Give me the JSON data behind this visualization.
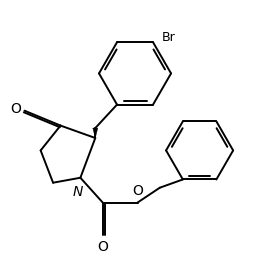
{
  "line_color": "#000000",
  "bg_color": "#ffffff",
  "lw": 1.4,
  "font_size": 9,
  "br_label": "Br",
  "o_label1": "O",
  "o_label2": "O",
  "o_label3": "O",
  "n_label": "N"
}
